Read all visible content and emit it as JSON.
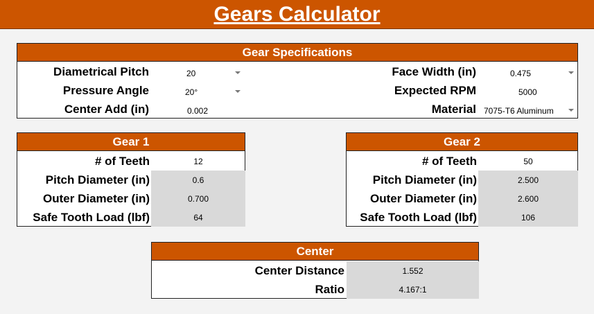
{
  "title": "Gears Calculator",
  "specs": {
    "heading": "Gear Specifications",
    "diametrical_pitch": {
      "label": "Diametrical Pitch",
      "value": "20"
    },
    "pressure_angle": {
      "label": "Pressure Angle",
      "value": "20°"
    },
    "center_add": {
      "label": "Center Add (in)",
      "value": "0.002"
    },
    "face_width": {
      "label": "Face Width (in)",
      "value": "0.475"
    },
    "expected_rpm": {
      "label": "Expected RPM",
      "value": "5000"
    },
    "material": {
      "label": "Material",
      "value": "7075-T6 Aluminum"
    }
  },
  "gear1": {
    "heading": "Gear 1",
    "teeth": {
      "label": "# of Teeth",
      "value": "12"
    },
    "pitch_diameter": {
      "label": "Pitch Diameter (in)",
      "value": "0.6"
    },
    "outer_diameter": {
      "label": "Outer Diameter (in)",
      "value": "0.700"
    },
    "safe_load": {
      "label": "Safe Tooth Load (lbf)",
      "value": "64"
    }
  },
  "gear2": {
    "heading": "Gear 2",
    "teeth": {
      "label": "# of Teeth",
      "value": "50"
    },
    "pitch_diameter": {
      "label": "Pitch Diameter (in)",
      "value": "2.500"
    },
    "outer_diameter": {
      "label": "Outer Diameter (in)",
      "value": "2.600"
    },
    "safe_load": {
      "label": "Safe Tooth Load (lbf)",
      "value": "106"
    }
  },
  "center": {
    "heading": "Center",
    "distance": {
      "label": "Center Distance",
      "value": "1.552"
    },
    "ratio": {
      "label": "Ratio",
      "value": "4.167:1"
    }
  },
  "colors": {
    "accent": "#cc5500",
    "computed_cell": "#d9d9d9"
  },
  "icons": {
    "dropdown": "dropdown-arrow-icon"
  }
}
